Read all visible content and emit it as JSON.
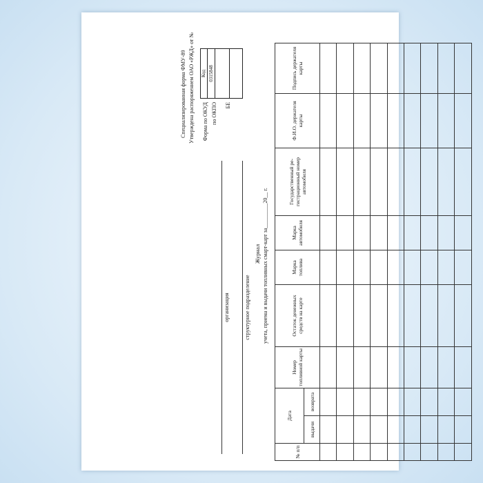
{
  "header": {
    "form_title": "Специализированная форма ФМУ-89",
    "approved": "Утверждена распоряжением ОАО «РЖД» от      №",
    "code_label": "Код",
    "okud_label": "Форма по ОКУД",
    "okud_value": "0315848",
    "okpo_label": "по ОКПО",
    "be_label": "БЕ"
  },
  "fields": {
    "organization": "организация",
    "division": "структурное подразделение"
  },
  "title": {
    "line1": "Журнал",
    "line2": "учета,   приема   и выдачи топливных смарт-карт за_________20__ г."
  },
  "table": {
    "columns": {
      "num": "№ п/п",
      "date": "Дата",
      "issue": "выдачи",
      "return": "возврата",
      "card_number": "Номер топливной карты",
      "balance": "Остаток денежных средств на карте",
      "fuel": "Марка топлива",
      "car_brand": "Марка автомобиля",
      "reg_number": "Государственный ре-гистрационный номер автомобиля",
      "holder_name": "Ф.И.О. держателя карты",
      "signature": "Подпись держателя карты"
    },
    "empty_rows": 9
  }
}
